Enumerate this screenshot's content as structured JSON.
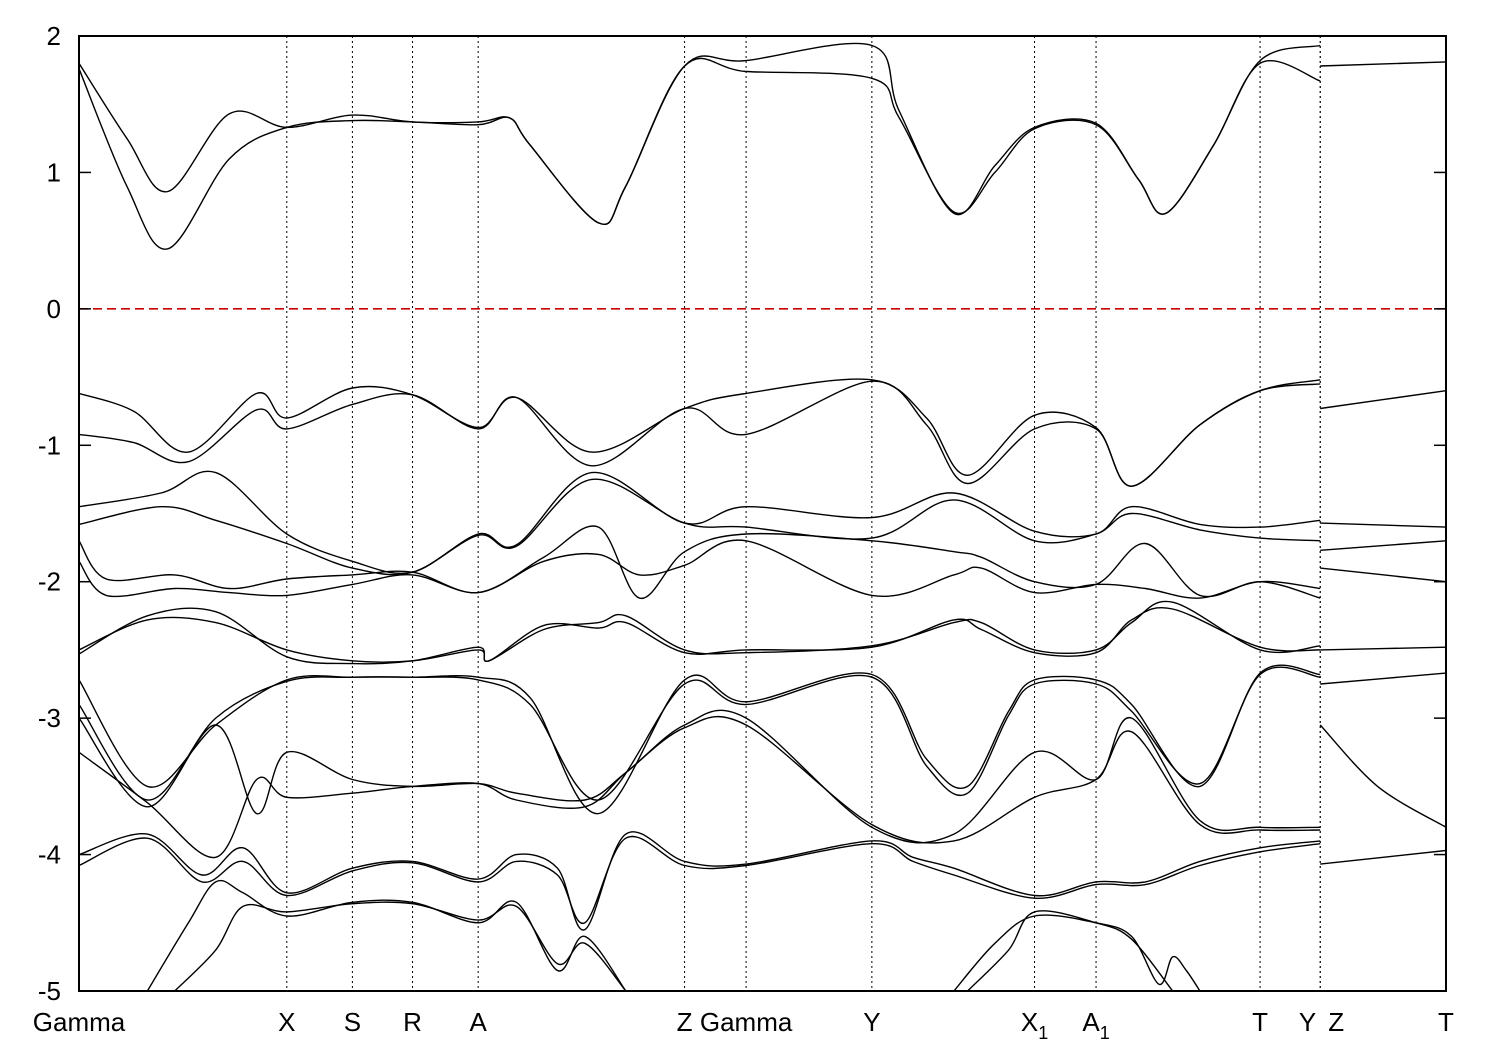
{
  "chart_data": {
    "type": "line",
    "title": "",
    "xlabel": "",
    "ylabel": "",
    "ylim": [
      -5,
      2
    ],
    "yticks": [
      -5,
      -4,
      -3,
      -2,
      -1,
      0,
      1,
      2
    ],
    "xlim": [
      0,
      1
    ],
    "grid": "vertical dotted lines at high-symmetry points",
    "kpoints": [
      {
        "label": "Gamma",
        "sub": "",
        "x": 0.0
      },
      {
        "label": "X",
        "sub": "",
        "x": 0.152
      },
      {
        "label": "S",
        "sub": "",
        "x": 0.2
      },
      {
        "label": "R",
        "sub": "",
        "x": 0.244
      },
      {
        "label": "A",
        "sub": "",
        "x": 0.292
      },
      {
        "label": "Z",
        "sub": "",
        "x": 0.443
      },
      {
        "label": "Gamma",
        "sub": "",
        "x": 0.488
      },
      {
        "label": "Y",
        "sub": "",
        "x": 0.58
      },
      {
        "label": "X",
        "sub": "1",
        "x": 0.699
      },
      {
        "label": "A",
        "sub": "1",
        "x": 0.744
      },
      {
        "label": "T",
        "sub": "",
        "x": 0.864
      },
      {
        "label": "Y",
        "sub": "",
        "x": 0.908
      },
      {
        "label": "Z",
        "sub": "",
        "x": 0.908
      },
      {
        "label": "T",
        "sub": "",
        "x": 1.0
      }
    ],
    "fermi_level": {
      "y": 0,
      "color": "#cc0000",
      "style": "dashed"
    },
    "series_color": "#000000",
    "series": [
      {
        "x": [
          0,
          0.035,
          0.065,
          0.11,
          0.152,
          0.2,
          0.244,
          0.292,
          0.315,
          0.33,
          0.38,
          0.4,
          0.443,
          0.488,
          0.58,
          0.6,
          0.64,
          0.67,
          0.699,
          0.744,
          0.775,
          0.795,
          0.83,
          0.864,
          0.908
        ],
        "y": [
          1.8,
          1.25,
          0.86,
          1.43,
          1.33,
          1.42,
          1.37,
          1.37,
          1.4,
          1.2,
          0.63,
          0.9,
          1.78,
          1.74,
          1.69,
          1.4,
          0.71,
          1.0,
          1.32,
          1.35,
          0.95,
          0.7,
          1.2,
          1.82,
          1.93
        ]
      },
      {
        "x": [
          0,
          0.035,
          0.065,
          0.11,
          0.152,
          0.2,
          0.244,
          0.292,
          0.315,
          0.33,
          0.38,
          0.4,
          0.443,
          0.488,
          0.58,
          0.6,
          0.64,
          0.67,
          0.699,
          0.744,
          0.775,
          0.795,
          0.83,
          0.864,
          0.908
        ],
        "y": [
          1.76,
          0.9,
          0.44,
          1.1,
          1.33,
          1.38,
          1.37,
          1.35,
          1.4,
          1.2,
          0.63,
          0.9,
          1.78,
          1.82,
          1.93,
          1.45,
          0.7,
          1.05,
          1.33,
          1.36,
          0.95,
          0.7,
          1.2,
          1.8,
          1.67
        ]
      },
      {
        "x": [
          0.908,
          1.0
        ],
        "y": [
          1.78,
          1.81
        ]
      },
      {
        "x": [
          0,
          0.04,
          0.08,
          0.13,
          0.152,
          0.2,
          0.244,
          0.292,
          0.32,
          0.375,
          0.443,
          0.488,
          0.58,
          0.62,
          0.65,
          0.699,
          0.744,
          0.77,
          0.82,
          0.864,
          0.908
        ],
        "y": [
          -0.62,
          -0.75,
          -1.05,
          -0.62,
          -0.8,
          -0.58,
          -0.63,
          -0.87,
          -0.65,
          -1.05,
          -0.73,
          -0.62,
          -0.52,
          -0.8,
          -1.22,
          -0.78,
          -0.87,
          -1.3,
          -0.85,
          -0.6,
          -0.52
        ]
      },
      {
        "x": [
          0,
          0.04,
          0.08,
          0.13,
          0.152,
          0.2,
          0.244,
          0.292,
          0.32,
          0.375,
          0.443,
          0.488,
          0.58,
          0.62,
          0.65,
          0.699,
          0.744,
          0.77,
          0.82,
          0.864,
          0.908
        ],
        "y": [
          -0.92,
          -0.98,
          -1.12,
          -0.74,
          -0.88,
          -0.7,
          -0.63,
          -0.88,
          -0.65,
          -1.15,
          -0.73,
          -0.92,
          -0.53,
          -0.85,
          -1.28,
          -0.88,
          -0.88,
          -1.3,
          -0.85,
          -0.6,
          -0.55
        ]
      },
      {
        "x": [
          0.908,
          1.0
        ],
        "y": [
          -0.73,
          -0.6
        ]
      },
      {
        "x": [
          0,
          0.06,
          0.1,
          0.152,
          0.2,
          0.244,
          0.292,
          0.32,
          0.375,
          0.443,
          0.488,
          0.58,
          0.64,
          0.699,
          0.744,
          0.77,
          0.82,
          0.864,
          0.908
        ],
        "y": [
          -1.45,
          -1.35,
          -1.2,
          -1.65,
          -1.85,
          -1.93,
          -1.65,
          -1.73,
          -1.2,
          -1.57,
          -1.45,
          -1.53,
          -1.35,
          -1.63,
          -1.65,
          -1.45,
          -1.58,
          -1.6,
          -1.55
        ]
      },
      {
        "x": [
          0,
          0.06,
          0.1,
          0.152,
          0.2,
          0.244,
          0.292,
          0.32,
          0.375,
          0.443,
          0.488,
          0.58,
          0.64,
          0.699,
          0.744,
          0.77,
          0.82,
          0.864,
          0.908
        ],
        "y": [
          -1.58,
          -1.45,
          -1.55,
          -1.72,
          -1.9,
          -1.93,
          -1.66,
          -1.74,
          -1.25,
          -1.57,
          -1.6,
          -1.68,
          -1.4,
          -1.7,
          -1.65,
          -1.5,
          -1.62,
          -1.68,
          -1.7
        ]
      },
      {
        "x": [
          0.908,
          1.0
        ],
        "y": [
          -1.57,
          -1.6
        ]
      },
      {
        "x": [
          0.908,
          1.0
        ],
        "y": [
          -1.77,
          -1.7
        ]
      },
      {
        "x": [
          0,
          0.02,
          0.07,
          0.11,
          0.152,
          0.2,
          0.244,
          0.292,
          0.34,
          0.38,
          0.41,
          0.443,
          0.488,
          0.58,
          0.64,
          0.66,
          0.699,
          0.744,
          0.78,
          0.82,
          0.864,
          0.908
        ],
        "y": [
          -1.7,
          -1.98,
          -1.95,
          -2.05,
          -1.98,
          -1.95,
          -1.93,
          -2.08,
          -1.82,
          -1.6,
          -2.12,
          -1.78,
          -1.65,
          -1.7,
          -1.78,
          -1.82,
          -2.0,
          -2.02,
          -1.72,
          -2.1,
          -2.0,
          -2.12
        ]
      },
      {
        "x": [
          0,
          0.02,
          0.07,
          0.11,
          0.152,
          0.2,
          0.244,
          0.292,
          0.34,
          0.38,
          0.41,
          0.443,
          0.488,
          0.58,
          0.64,
          0.66,
          0.699,
          0.744,
          0.78,
          0.82,
          0.864,
          0.908
        ],
        "y": [
          -1.85,
          -2.1,
          -2.05,
          -2.08,
          -2.1,
          -2.02,
          -1.95,
          -2.08,
          -1.85,
          -1.8,
          -1.95,
          -1.88,
          -1.7,
          -2.1,
          -1.95,
          -1.9,
          -2.08,
          -2.02,
          -2.05,
          -2.12,
          -2.0,
          -2.05
        ]
      },
      {
        "x": [
          0.908,
          1.0
        ],
        "y": [
          -1.9,
          -2.0
        ]
      },
      {
        "x": [
          0,
          0.05,
          0.1,
          0.152,
          0.2,
          0.244,
          0.292,
          0.3,
          0.34,
          0.38,
          0.4,
          0.443,
          0.488,
          0.58,
          0.64,
          0.66,
          0.699,
          0.744,
          0.77,
          0.8,
          0.864,
          0.908
        ],
        "y": [
          -2.5,
          -2.28,
          -2.3,
          -2.5,
          -2.58,
          -2.58,
          -2.5,
          -2.58,
          -2.35,
          -2.3,
          -2.25,
          -2.5,
          -2.52,
          -2.47,
          -2.3,
          -2.3,
          -2.5,
          -2.5,
          -2.3,
          -2.15,
          -2.5,
          -2.47
        ]
      },
      {
        "x": [
          0,
          0.05,
          0.1,
          0.152,
          0.2,
          0.244,
          0.292,
          0.3,
          0.34,
          0.38,
          0.4,
          0.443,
          0.488,
          0.58,
          0.64,
          0.66,
          0.699,
          0.744,
          0.77,
          0.8,
          0.864,
          0.908
        ],
        "y": [
          -2.53,
          -2.25,
          -2.22,
          -2.55,
          -2.6,
          -2.58,
          -2.48,
          -2.58,
          -2.32,
          -2.34,
          -2.3,
          -2.52,
          -2.5,
          -2.48,
          -2.28,
          -2.35,
          -2.52,
          -2.52,
          -2.28,
          -2.2,
          -2.48,
          -2.5
        ]
      },
      {
        "x": [
          0.908,
          1.0
        ],
        "y": [
          -2.5,
          -2.48
        ]
      },
      {
        "x": [
          0,
          0.05,
          0.1,
          0.152,
          0.2,
          0.244,
          0.292,
          0.33,
          0.38,
          0.443,
          0.488,
          0.58,
          0.62,
          0.65,
          0.68,
          0.699,
          0.744,
          0.77,
          0.82,
          0.864,
          0.908
        ],
        "y": [
          -2.72,
          -3.5,
          -3.05,
          -2.72,
          -2.7,
          -2.7,
          -2.7,
          -2.85,
          -3.7,
          -2.72,
          -2.88,
          -2.68,
          -3.3,
          -3.5,
          -2.95,
          -2.72,
          -2.72,
          -2.9,
          -3.5,
          -2.67,
          -2.68
        ]
      },
      {
        "x": [
          0,
          0.05,
          0.1,
          0.152,
          0.2,
          0.244,
          0.292,
          0.33,
          0.38,
          0.443,
          0.488,
          0.58,
          0.62,
          0.65,
          0.68,
          0.699,
          0.744,
          0.77,
          0.82,
          0.864,
          0.908
        ],
        "y": [
          -2.9,
          -3.6,
          -3.0,
          -2.73,
          -2.7,
          -2.7,
          -2.72,
          -2.9,
          -3.6,
          -2.75,
          -2.9,
          -2.7,
          -3.35,
          -3.55,
          -2.98,
          -2.75,
          -2.75,
          -2.95,
          -3.48,
          -2.68,
          -2.7
        ]
      },
      {
        "x": [
          0.908,
          1.0
        ],
        "y": [
          -2.75,
          -2.67
        ]
      },
      {
        "x": [
          0,
          0.05,
          0.1,
          0.13,
          0.152,
          0.2,
          0.244,
          0.292,
          0.32,
          0.37,
          0.4,
          0.443,
          0.488,
          0.58,
          0.64,
          0.699,
          0.744,
          0.77,
          0.82,
          0.864,
          0.908
        ],
        "y": [
          -3.0,
          -3.65,
          -3.05,
          -3.7,
          -3.25,
          -3.45,
          -3.5,
          -3.48,
          -3.55,
          -3.6,
          -3.4,
          -3.05,
          -3.0,
          -3.8,
          -3.85,
          -3.25,
          -3.45,
          -3.0,
          -3.75,
          -3.8,
          -3.8
        ]
      },
      {
        "x": [
          0,
          0.05,
          0.1,
          0.13,
          0.152,
          0.2,
          0.244,
          0.292,
          0.32,
          0.37,
          0.4,
          0.443,
          0.488,
          0.58,
          0.64,
          0.699,
          0.744,
          0.77,
          0.82,
          0.864,
          0.908
        ],
        "y": [
          -3.25,
          -3.62,
          -4.02,
          -3.45,
          -3.58,
          -3.55,
          -3.5,
          -3.48,
          -3.6,
          -3.65,
          -3.4,
          -3.07,
          -3.05,
          -3.78,
          -3.9,
          -3.58,
          -3.45,
          -3.1,
          -3.78,
          -3.82,
          -3.82
        ]
      },
      {
        "x": [
          0.908,
          0.95,
          1.0
        ],
        "y": [
          -3.05,
          -3.5,
          -3.8
        ]
      },
      {
        "x": [
          0,
          0.05,
          0.09,
          0.12,
          0.152,
          0.2,
          0.244,
          0.292,
          0.32,
          0.35,
          0.37,
          0.4,
          0.443,
          0.488,
          0.58,
          0.61,
          0.64,
          0.699,
          0.744,
          0.78,
          0.82,
          0.864,
          0.908
        ],
        "y": [
          -4.0,
          -3.85,
          -4.15,
          -3.95,
          -4.28,
          -4.1,
          -4.05,
          -4.18,
          -4.0,
          -4.1,
          -4.55,
          -3.85,
          -4.05,
          -4.07,
          -3.9,
          -4.02,
          -4.1,
          -4.3,
          -4.2,
          -4.2,
          -4.05,
          -3.95,
          -3.9
        ]
      },
      {
        "x": [
          0,
          0.05,
          0.09,
          0.12,
          0.152,
          0.2,
          0.244,
          0.292,
          0.32,
          0.35,
          0.37,
          0.4,
          0.443,
          0.488,
          0.58,
          0.61,
          0.64,
          0.699,
          0.744,
          0.78,
          0.82,
          0.864,
          0.908
        ],
        "y": [
          -4.08,
          -3.88,
          -4.2,
          -4.05,
          -4.3,
          -4.12,
          -4.06,
          -4.2,
          -4.05,
          -4.15,
          -4.5,
          -3.88,
          -4.08,
          -4.08,
          -3.92,
          -4.05,
          -4.15,
          -4.32,
          -4.22,
          -4.22,
          -4.08,
          -3.98,
          -3.92
        ]
      },
      {
        "x": [
          0.908,
          1.0
        ],
        "y": [
          -4.07,
          -3.97
        ]
      },
      {
        "x": [
          0.05,
          0.08,
          0.1,
          0.12,
          0.152,
          0.2,
          0.244,
          0.292,
          0.32,
          0.35,
          0.37,
          0.4
        ],
        "y": [
          -5.0,
          -4.5,
          -4.2,
          -4.28,
          -4.45,
          -4.35,
          -4.35,
          -4.5,
          -4.35,
          -4.85,
          -4.6,
          -5.0
        ]
      },
      {
        "x": [
          0.07,
          0.1,
          0.12,
          0.152,
          0.2,
          0.244,
          0.292,
          0.32,
          0.35,
          0.37,
          0.4
        ],
        "y": [
          -5.0,
          -4.7,
          -4.38,
          -4.42,
          -4.36,
          -4.36,
          -4.48,
          -4.38,
          -4.8,
          -4.65,
          -5.0
        ]
      },
      {
        "x": [
          0.64,
          0.67,
          0.699,
          0.744,
          0.77,
          0.79,
          0.8,
          0.81,
          0.82
        ],
        "y": [
          -5.0,
          -4.65,
          -4.45,
          -4.5,
          -4.6,
          -4.95,
          -4.75,
          -4.85,
          -5.0
        ]
      },
      {
        "x": [
          0.65,
          0.68,
          0.699,
          0.744,
          0.77,
          0.8
        ],
        "y": [
          -5.0,
          -4.7,
          -4.42,
          -4.5,
          -4.62,
          -5.0
        ]
      }
    ]
  }
}
